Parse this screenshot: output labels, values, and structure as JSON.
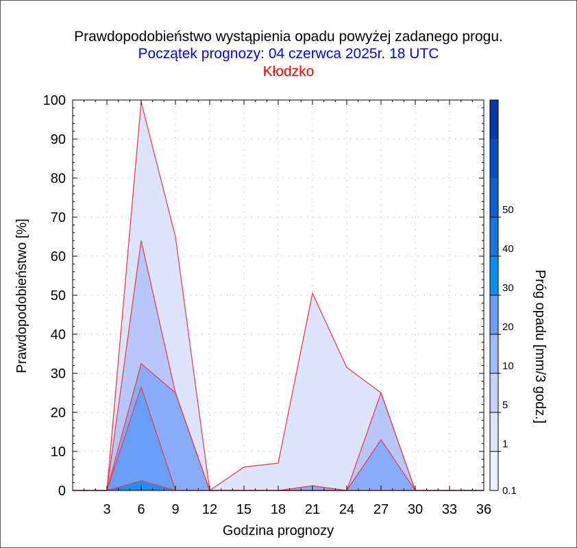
{
  "chart_data": {
    "type": "area",
    "title": "Prawdopodobieństwo wystąpienia opadu powyżej zadanego progu.",
    "subtitle": "Początek prognozy: 04 czerwca 2025r. 18 UTC",
    "location": "Kłodzko",
    "xlabel": "Godzina prognozy",
    "ylabel": "Prawdopodobieństwo [%]",
    "colorbar_label": "Próg opadu [mm/3 godz.]",
    "xlim": [
      0,
      36
    ],
    "ylim": [
      0,
      100
    ],
    "xticks": [
      "3",
      "6",
      "9",
      "12",
      "15",
      "18",
      "21",
      "24",
      "27",
      "30",
      "33",
      "36"
    ],
    "yticks": [
      "0",
      "10",
      "20",
      "30",
      "40",
      "50",
      "60",
      "70",
      "80",
      "90",
      "100"
    ],
    "grid": "dotted",
    "x": [
      0,
      3,
      6,
      9,
      12,
      15,
      18,
      21,
      24,
      27,
      30,
      33,
      36
    ],
    "series": [
      {
        "name": "0.1",
        "color": "#dde3fb",
        "values": [
          0,
          0,
          99.5,
          65,
          0,
          6,
          7,
          50.5,
          31.5,
          25,
          0,
          0,
          0
        ]
      },
      {
        "name": "1",
        "color": "#b8c7f9",
        "values": [
          0,
          0,
          64,
          25,
          0,
          0,
          0,
          0,
          0,
          25,
          0,
          0,
          0
        ]
      },
      {
        "name": "5",
        "color": "#88acf9",
        "values": [
          0,
          0,
          32.5,
          25,
          0,
          0,
          0,
          1.2,
          0,
          13,
          0,
          0,
          0
        ]
      },
      {
        "name": "10",
        "color": "#6a9ff9",
        "values": [
          0,
          0,
          26.5,
          0,
          0,
          0,
          0,
          0,
          0,
          0,
          0,
          0,
          0
        ]
      },
      {
        "name": "20",
        "color": "#1f8ff6",
        "values": [
          0,
          0,
          2.5,
          0,
          0,
          0,
          0,
          0,
          0,
          0,
          0,
          0,
          0
        ]
      }
    ],
    "colorbar": {
      "labels": [
        "0.1",
        "1",
        "5",
        "10",
        "20",
        "30",
        "40",
        "50"
      ],
      "colors": [
        "#eceffd",
        "#dde3fb",
        "#c5d2fa",
        "#9db9f7",
        "#6b9df3",
        "#0a90f4",
        "#1a74e4",
        "#0e5fd4",
        "#0b4ec0",
        "#063aa8"
      ]
    }
  }
}
